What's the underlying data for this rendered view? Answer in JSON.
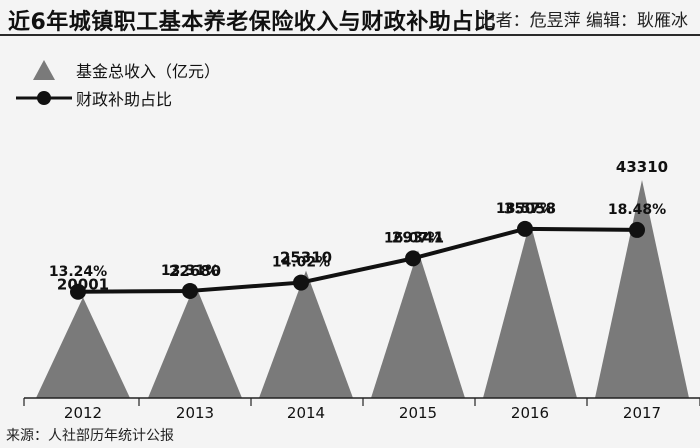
{
  "header": {
    "title": "近6年城镇职工基本养老保险收入与财政补助占比",
    "credit": "记者：危昱萍 编辑：耿雁冰"
  },
  "legend": {
    "income_label": "基金总收入（亿元）",
    "subsidy_label": "财政补助占比"
  },
  "footer": {
    "source": "来源：人社部历年统计公报"
  },
  "colors": {
    "triangle": "#7a7a7a",
    "line": "#111111",
    "background": "#f4f4f4"
  },
  "chart_data": {
    "type": "bar",
    "categories": [
      "2012",
      "2013",
      "2014",
      "2015",
      "2016",
      "2017"
    ],
    "series": [
      {
        "name": "基金总收入（亿元）",
        "type": "triangle-bar",
        "values": [
          20001,
          22680,
          25310,
          29341,
          35058,
          43310
        ],
        "labels": [
          "20001",
          "22680",
          "25310",
          "29341",
          "35058",
          "43310"
        ]
      },
      {
        "name": "财政补助占比",
        "type": "line",
        "values": [
          13.24,
          13.31,
          14.02,
          16.07,
          18.57,
          18.48
        ],
        "labels": [
          "13.24%",
          "13.31%",
          "14.02%",
          "16.07%",
          "18.57%",
          "18.48%"
        ]
      }
    ],
    "legend_position": "top-left",
    "grid": false
  }
}
